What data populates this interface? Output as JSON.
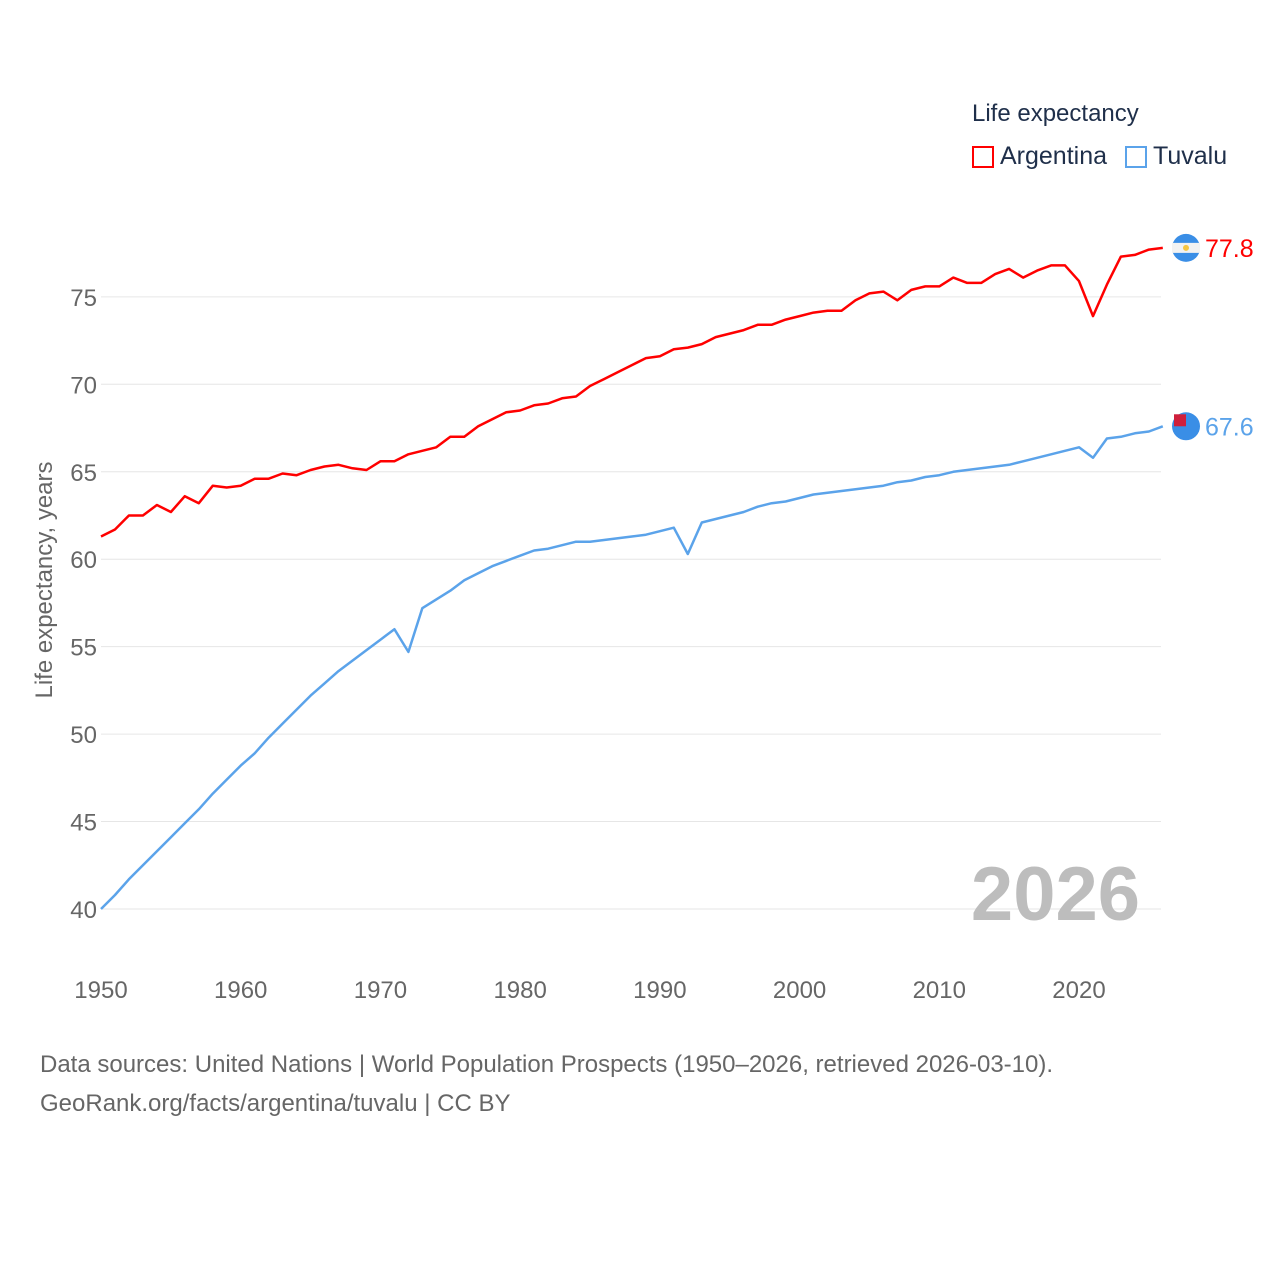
{
  "chart_data": {
    "type": "line",
    "title": "Life expectancy",
    "ylabel": "Life expectancy, years",
    "xlabel": "",
    "xlim": [
      1950,
      2026
    ],
    "ylim": [
      38,
      80
    ],
    "x_ticks": [
      1950,
      1960,
      1970,
      1980,
      1990,
      2000,
      2010,
      2020
    ],
    "y_ticks": [
      40,
      45,
      50,
      55,
      60,
      65,
      70,
      75
    ],
    "grid": true,
    "legend_placement": "top-right",
    "year_watermark": "2026",
    "x": [
      1950,
      1951,
      1952,
      1953,
      1954,
      1955,
      1956,
      1957,
      1958,
      1959,
      1960,
      1961,
      1962,
      1963,
      1964,
      1965,
      1966,
      1967,
      1968,
      1969,
      1970,
      1971,
      1972,
      1973,
      1974,
      1975,
      1976,
      1977,
      1978,
      1979,
      1980,
      1981,
      1982,
      1983,
      1984,
      1985,
      1986,
      1987,
      1988,
      1989,
      1990,
      1991,
      1992,
      1993,
      1994,
      1995,
      1996,
      1997,
      1998,
      1999,
      2000,
      2001,
      2002,
      2003,
      2004,
      2005,
      2006,
      2007,
      2008,
      2009,
      2010,
      2011,
      2012,
      2013,
      2014,
      2015,
      2016,
      2017,
      2018,
      2019,
      2020,
      2021,
      2022,
      2023,
      2024,
      2025,
      2026
    ],
    "series": [
      {
        "name": "Argentina",
        "color": "#ff0000",
        "end_label": "77.8",
        "values": [
          61.3,
          61.7,
          62.5,
          62.5,
          63.1,
          62.7,
          63.6,
          63.2,
          64.2,
          64.1,
          64.2,
          64.6,
          64.6,
          64.9,
          64.8,
          65.1,
          65.3,
          65.4,
          65.2,
          65.1,
          65.6,
          65.6,
          66.0,
          66.2,
          66.4,
          67.0,
          67.0,
          67.6,
          68.0,
          68.4,
          68.5,
          68.8,
          68.9,
          69.2,
          69.3,
          69.9,
          70.3,
          70.7,
          71.1,
          71.5,
          71.6,
          72.0,
          72.1,
          72.3,
          72.7,
          72.9,
          73.1,
          73.4,
          73.4,
          73.7,
          73.9,
          74.1,
          74.2,
          74.2,
          74.8,
          75.2,
          75.3,
          74.8,
          75.4,
          75.6,
          75.6,
          76.1,
          75.8,
          75.8,
          76.3,
          76.6,
          76.1,
          76.5,
          76.8,
          76.8,
          75.9,
          73.9,
          75.7,
          77.3,
          77.4,
          77.7,
          77.8
        ]
      },
      {
        "name": "Tuvalu",
        "color": "#5ba3ea",
        "end_label": "67.6",
        "values": [
          40.0,
          40.8,
          41.7,
          42.5,
          43.3,
          44.1,
          44.9,
          45.7,
          46.6,
          47.4,
          48.2,
          48.9,
          49.8,
          50.6,
          51.4,
          52.2,
          52.9,
          53.6,
          54.2,
          54.8,
          55.4,
          56.0,
          54.7,
          57.2,
          57.7,
          58.2,
          58.8,
          59.2,
          59.6,
          59.9,
          60.2,
          60.5,
          60.6,
          60.8,
          61.0,
          61.0,
          61.1,
          61.2,
          61.3,
          61.4,
          61.6,
          61.8,
          60.3,
          62.1,
          62.3,
          62.5,
          62.7,
          63.0,
          63.2,
          63.3,
          63.5,
          63.7,
          63.8,
          63.9,
          64.0,
          64.1,
          64.2,
          64.4,
          64.5,
          64.7,
          64.8,
          65.0,
          65.1,
          65.2,
          65.3,
          65.4,
          65.6,
          65.8,
          66.0,
          66.2,
          66.4,
          65.8,
          66.9,
          67.0,
          67.2,
          67.3,
          67.6
        ]
      }
    ]
  },
  "source": {
    "line1": "Data sources: United Nations | World Population Prospects (1950–2026, retrieved 2026-03-10).",
    "line2": "GeoRank.org/facts/argentina/tuvalu | CC BY"
  }
}
